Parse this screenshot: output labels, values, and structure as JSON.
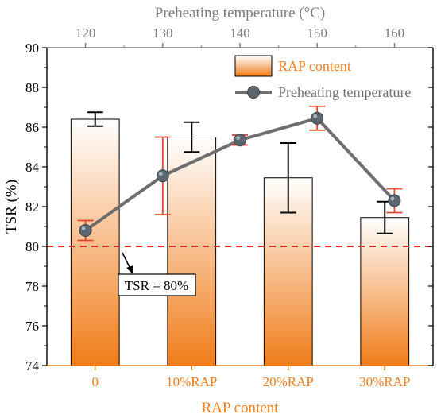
{
  "chart_data": {
    "type": "bar",
    "colors": {
      "bar_dark": "#f07d1b",
      "bar_light": "#ffffff",
      "bar_error": "#000000",
      "line": "#6e6e6e",
      "marker": "#5a6670",
      "line_error": "#e8452f",
      "threshold": "#e52b2b",
      "axis_bottom": "#f07d1b",
      "axis_top": "#7a7a7a"
    },
    "ylabel": "TSR (%)",
    "ylim": [
      74,
      90
    ],
    "yticks": [
      "74",
      "76",
      "78",
      "80",
      "82",
      "84",
      "86",
      "88",
      "90"
    ],
    "bottom_axis": {
      "label": "RAP content",
      "categories": [
        "0",
        "10%RAP",
        "20%RAP",
        "30%RAP"
      ]
    },
    "top_axis": {
      "label": "Preheating temperature (°C)",
      "range": [
        115,
        165
      ],
      "ticks": [
        "120",
        "130",
        "140",
        "150",
        "160"
      ]
    },
    "bars": {
      "name": "RAP content",
      "values": [
        86.4,
        85.5,
        83.45,
        81.45
      ],
      "errors": [
        0.35,
        0.75,
        1.75,
        0.8
      ]
    },
    "line": {
      "name": "Preheating temperature",
      "x": [
        120,
        130,
        140,
        150,
        160
      ],
      "values": [
        80.8,
        83.55,
        85.35,
        86.45,
        82.3
      ],
      "errors": [
        0.5,
        1.95,
        0.25,
        0.6,
        0.6
      ]
    },
    "threshold": {
      "value": 80,
      "annotation": "TSR = 80%"
    },
    "legend": {
      "position": "top-right"
    }
  }
}
